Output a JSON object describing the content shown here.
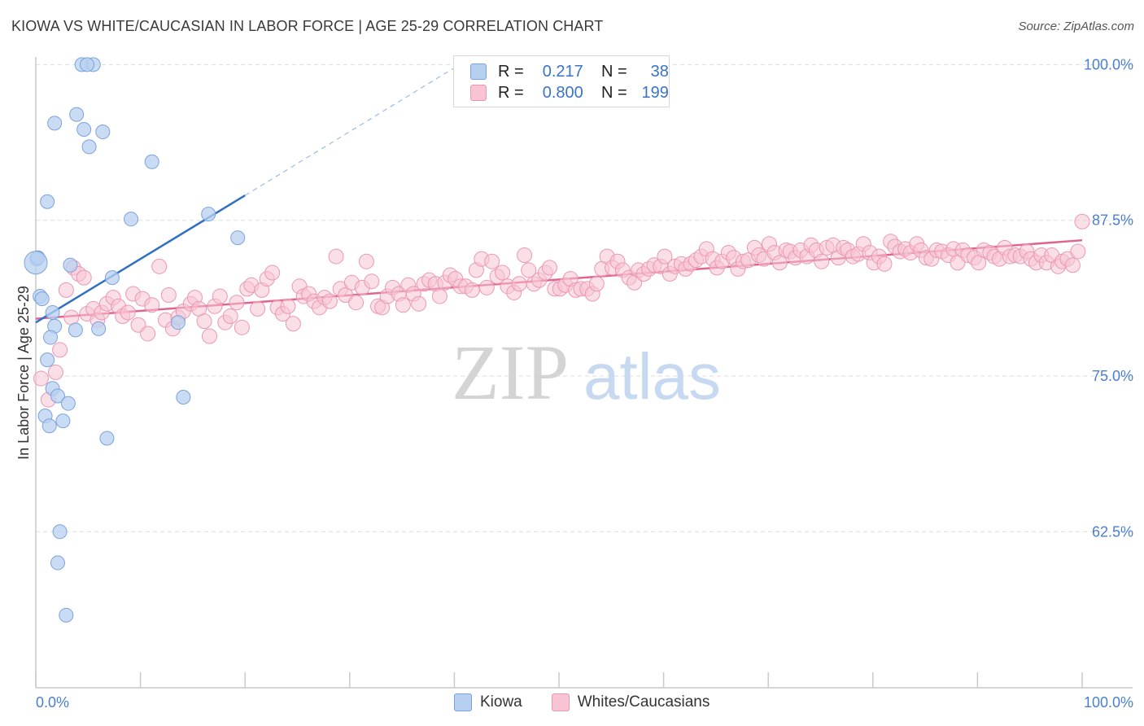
{
  "header": {
    "title": "KIOWA VS WHITE/CAUCASIAN IN LABOR FORCE | AGE 25-29 CORRELATION CHART",
    "source": "Source: ZipAtlas.com"
  },
  "watermark": {
    "zip": "ZIP",
    "atlas": "atlas"
  },
  "legend": {
    "rows": [
      {
        "r_label": "R =",
        "r_value": "0.217",
        "n_label": "N =",
        "n_value": "38"
      },
      {
        "r_label": "R =",
        "r_value": "0.800",
        "n_label": "N =",
        "n_value": "199"
      }
    ]
  },
  "bottom_legend": {
    "kiowa": "Kiowa",
    "whites": "Whites/Caucasians"
  },
  "colors": {
    "kiowa_fill": "#b8d0f0",
    "kiowa_stroke": "#7ba3db",
    "kiowa_line": "#2f6fc4",
    "whites_fill": "#f8c4d4",
    "whites_stroke": "#eb97b3",
    "whites_line": "#e0648f",
    "tick_text": "#4a7fd0",
    "grid": "#dddddd"
  },
  "chart_data": {
    "type": "scatter",
    "title": "KIOWA VS WHITE/CAUCASIAN IN LABOR FORCE | AGE 25-29 CORRELATION CHART",
    "xlabel": "",
    "ylabel": "In Labor Force | Age 25-29",
    "xlim": [
      0,
      100
    ],
    "ylim": [
      50,
      102.5
    ],
    "x_tick_labels": [
      "0.0%",
      "100.0%"
    ],
    "y_ticks": [
      62.5,
      75.0,
      87.5,
      100.0
    ],
    "y_tick_labels": [
      "62.5%",
      "75.0%",
      "87.5%",
      "100.0%"
    ],
    "grid": true,
    "legend_position": "top-center",
    "series": [
      {
        "name": "Kiowa",
        "R": 0.217,
        "N": 38,
        "trendline": {
          "x": [
            0,
            20
          ],
          "y": [
            79.3,
            89.5
          ],
          "dashed_extension_to": [
            40.5,
            100.0
          ]
        },
        "points": [
          [
            4.4,
            100.0
          ],
          [
            5.5,
            100.0
          ],
          [
            4.9,
            100.0
          ],
          [
            1.8,
            95.3
          ],
          [
            3.9,
            96.0
          ],
          [
            4.6,
            94.8
          ],
          [
            6.4,
            94.6
          ],
          [
            5.1,
            93.4
          ],
          [
            11.1,
            92.2
          ],
          [
            1.1,
            89.0
          ],
          [
            16.5,
            88.0
          ],
          [
            9.1,
            87.6
          ],
          [
            19.3,
            86.1
          ],
          [
            0.1,
            84.4
          ],
          [
            0.2,
            84.5
          ],
          [
            3.3,
            83.9
          ],
          [
            7.3,
            82.9
          ],
          [
            0.4,
            81.4
          ],
          [
            0.6,
            81.2
          ],
          [
            1.6,
            80.1
          ],
          [
            1.8,
            79.0
          ],
          [
            3.8,
            78.7
          ],
          [
            6.0,
            78.8
          ],
          [
            1.4,
            78.1
          ],
          [
            13.6,
            79.3
          ],
          [
            1.1,
            76.3
          ],
          [
            1.6,
            74.0
          ],
          [
            2.1,
            73.4
          ],
          [
            3.1,
            72.8
          ],
          [
            14.1,
            73.3
          ],
          [
            0.9,
            71.8
          ],
          [
            2.6,
            71.4
          ],
          [
            1.3,
            71.0
          ],
          [
            6.8,
            70.0
          ],
          [
            2.3,
            62.5
          ],
          [
            2.1,
            60.0
          ],
          [
            2.9,
            55.8
          ],
          [
            0.0,
            84.1
          ]
        ]
      },
      {
        "name": "Whites/Caucasians",
        "R": 0.8,
        "N": 199,
        "trendline": {
          "x": [
            0,
            100
          ],
          "y": [
            79.6,
            85.9
          ]
        },
        "points": [
          [
            0.5,
            74.8
          ],
          [
            1.2,
            73.1
          ],
          [
            1.9,
            75.3
          ],
          [
            2.3,
            77.1
          ],
          [
            2.9,
            81.9
          ],
          [
            3.4,
            79.7
          ],
          [
            3.6,
            83.7
          ],
          [
            4.1,
            83.2
          ],
          [
            4.6,
            82.9
          ],
          [
            4.9,
            80.0
          ],
          [
            5.5,
            80.4
          ],
          [
            5.9,
            79.5
          ],
          [
            6.3,
            80.1
          ],
          [
            6.8,
            80.8
          ],
          [
            7.4,
            81.3
          ],
          [
            7.9,
            80.6
          ],
          [
            8.3,
            79.8
          ],
          [
            8.8,
            80.1
          ],
          [
            9.3,
            81.6
          ],
          [
            9.8,
            79.1
          ],
          [
            10.2,
            81.2
          ],
          [
            10.7,
            78.4
          ],
          [
            11.1,
            80.7
          ],
          [
            11.8,
            83.8
          ],
          [
            12.4,
            79.5
          ],
          [
            12.7,
            81.5
          ],
          [
            13.1,
            78.8
          ],
          [
            13.6,
            79.7
          ],
          [
            14.1,
            80.2
          ],
          [
            14.8,
            80.8
          ],
          [
            15.2,
            81.3
          ],
          [
            15.6,
            80.4
          ],
          [
            16.1,
            79.4
          ],
          [
            16.6,
            78.2
          ],
          [
            17.1,
            80.6
          ],
          [
            17.6,
            81.4
          ],
          [
            18.1,
            79.3
          ],
          [
            18.6,
            79.8
          ],
          [
            19.2,
            80.9
          ],
          [
            19.7,
            78.9
          ],
          [
            20.2,
            82.0
          ],
          [
            20.6,
            82.3
          ],
          [
            21.2,
            80.4
          ],
          [
            21.6,
            81.9
          ],
          [
            22.1,
            82.8
          ],
          [
            22.6,
            83.3
          ],
          [
            23.1,
            80.5
          ],
          [
            23.6,
            80.0
          ],
          [
            24.1,
            80.6
          ],
          [
            24.6,
            79.2
          ],
          [
            25.2,
            82.2
          ],
          [
            25.6,
            81.4
          ],
          [
            26.1,
            81.6
          ],
          [
            26.6,
            81.0
          ],
          [
            27.1,
            80.5
          ],
          [
            27.6,
            81.3
          ],
          [
            28.1,
            81.0
          ],
          [
            28.7,
            84.6
          ],
          [
            29.1,
            82.0
          ],
          [
            29.6,
            81.5
          ],
          [
            30.2,
            82.5
          ],
          [
            30.6,
            80.9
          ],
          [
            31.2,
            82.1
          ],
          [
            31.6,
            84.2
          ],
          [
            32.1,
            82.6
          ],
          [
            32.7,
            80.6
          ],
          [
            33.1,
            80.5
          ],
          [
            33.6,
            81.4
          ],
          [
            34.1,
            82.1
          ],
          [
            34.7,
            81.6
          ],
          [
            35.1,
            80.7
          ],
          [
            35.6,
            82.3
          ],
          [
            36.1,
            81.6
          ],
          [
            36.6,
            80.8
          ],
          [
            37.1,
            82.4
          ],
          [
            37.6,
            82.7
          ],
          [
            38.2,
            82.4
          ],
          [
            38.6,
            81.4
          ],
          [
            39.1,
            82.5
          ],
          [
            39.6,
            83.1
          ],
          [
            40.1,
            82.8
          ],
          [
            40.6,
            82.2
          ],
          [
            41.1,
            82.2
          ],
          [
            41.7,
            81.9
          ],
          [
            42.1,
            83.5
          ],
          [
            42.6,
            84.4
          ],
          [
            43.1,
            82.1
          ],
          [
            43.6,
            84.2
          ],
          [
            44.1,
            83.0
          ],
          [
            44.6,
            83.3
          ],
          [
            45.1,
            82.2
          ],
          [
            45.7,
            81.7
          ],
          [
            46.2,
            82.4
          ],
          [
            46.7,
            84.7
          ],
          [
            47.1,
            83.5
          ],
          [
            47.6,
            82.4
          ],
          [
            48.1,
            82.7
          ],
          [
            48.7,
            83.3
          ],
          [
            49.1,
            83.7
          ],
          [
            49.6,
            82.0
          ],
          [
            50.1,
            82.0
          ],
          [
            50.6,
            82.3
          ],
          [
            51.1,
            82.8
          ],
          [
            51.6,
            81.9
          ],
          [
            52.1,
            82.0
          ],
          [
            52.7,
            82.0
          ],
          [
            53.2,
            81.6
          ],
          [
            53.6,
            82.4
          ],
          [
            54.1,
            83.6
          ],
          [
            54.6,
            84.6
          ],
          [
            55.1,
            83.7
          ],
          [
            55.6,
            84.2
          ],
          [
            56.1,
            83.5
          ],
          [
            56.7,
            82.9
          ],
          [
            57.2,
            82.5
          ],
          [
            57.6,
            83.5
          ],
          [
            58.1,
            83.2
          ],
          [
            58.6,
            83.6
          ],
          [
            59.1,
            83.9
          ],
          [
            59.7,
            83.8
          ],
          [
            60.1,
            84.6
          ],
          [
            60.6,
            83.2
          ],
          [
            61.1,
            83.8
          ],
          [
            61.7,
            84.0
          ],
          [
            62.1,
            83.6
          ],
          [
            62.6,
            84.0
          ],
          [
            63.1,
            84.3
          ],
          [
            63.6,
            84.6
          ],
          [
            64.1,
            85.2
          ],
          [
            64.7,
            84.4
          ],
          [
            65.1,
            83.7
          ],
          [
            65.6,
            84.2
          ],
          [
            66.2,
            84.9
          ],
          [
            66.7,
            84.5
          ],
          [
            67.1,
            83.6
          ],
          [
            67.6,
            84.2
          ],
          [
            68.1,
            84.3
          ],
          [
            68.7,
            85.3
          ],
          [
            69.1,
            84.7
          ],
          [
            69.6,
            84.4
          ],
          [
            70.1,
            85.6
          ],
          [
            70.6,
            84.9
          ],
          [
            71.1,
            84.1
          ],
          [
            71.7,
            85.1
          ],
          [
            72.1,
            85.0
          ],
          [
            72.6,
            84.5
          ],
          [
            73.1,
            85.1
          ],
          [
            73.7,
            84.6
          ],
          [
            74.1,
            85.5
          ],
          [
            74.6,
            85.1
          ],
          [
            75.1,
            84.2
          ],
          [
            75.6,
            85.3
          ],
          [
            76.2,
            85.5
          ],
          [
            76.7,
            84.5
          ],
          [
            77.2,
            85.3
          ],
          [
            77.6,
            85.1
          ],
          [
            78.1,
            84.6
          ],
          [
            78.6,
            84.8
          ],
          [
            79.1,
            85.6
          ],
          [
            79.7,
            84.9
          ],
          [
            80.1,
            84.1
          ],
          [
            80.6,
            84.6
          ],
          [
            81.1,
            84.0
          ],
          [
            81.7,
            85.8
          ],
          [
            82.1,
            85.4
          ],
          [
            82.6,
            85.0
          ],
          [
            83.1,
            85.2
          ],
          [
            83.6,
            84.9
          ],
          [
            84.2,
            85.6
          ],
          [
            84.6,
            85.1
          ],
          [
            85.1,
            84.5
          ],
          [
            85.6,
            84.4
          ],
          [
            86.1,
            85.1
          ],
          [
            86.6,
            85.0
          ],
          [
            87.2,
            84.7
          ],
          [
            87.7,
            85.2
          ],
          [
            88.1,
            84.1
          ],
          [
            88.6,
            85.1
          ],
          [
            89.1,
            84.7
          ],
          [
            89.7,
            84.5
          ],
          [
            90.1,
            84.1
          ],
          [
            90.6,
            85.1
          ],
          [
            91.2,
            84.9
          ],
          [
            91.6,
            84.6
          ],
          [
            92.1,
            84.4
          ],
          [
            92.6,
            85.3
          ],
          [
            93.1,
            84.6
          ],
          [
            93.6,
            84.7
          ],
          [
            94.1,
            84.6
          ],
          [
            94.7,
            85.0
          ],
          [
            95.1,
            84.4
          ],
          [
            95.6,
            84.1
          ],
          [
            96.1,
            84.7
          ],
          [
            96.6,
            84.1
          ],
          [
            97.1,
            84.7
          ],
          [
            97.7,
            83.8
          ],
          [
            98.1,
            84.2
          ],
          [
            98.6,
            84.4
          ],
          [
            99.1,
            83.9
          ],
          [
            99.6,
            85.0
          ],
          [
            100.0,
            87.4
          ]
        ]
      }
    ]
  }
}
